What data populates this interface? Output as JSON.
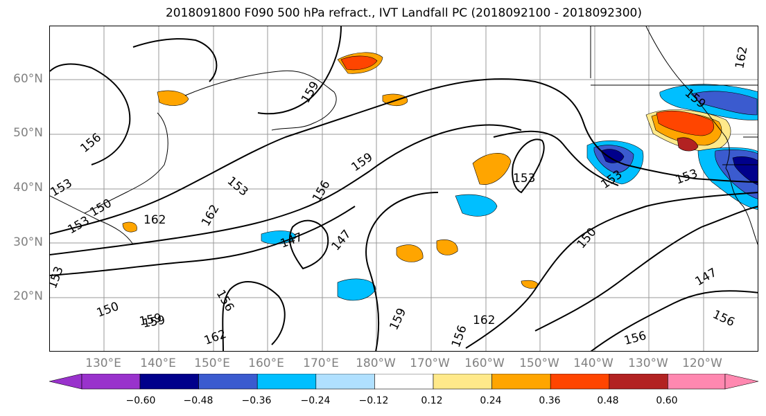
{
  "title": "2018091800 F090 500 hPa refract., IVT Landfall PC (2018092100 - 2018092300)",
  "lat_labels": [
    "60°N",
    "50°N",
    "40°N",
    "30°N",
    "20°N"
  ],
  "lon_labels": [
    "130°E",
    "140°E",
    "150°E",
    "160°E",
    "170°E",
    "180°W",
    "170°W",
    "160°W",
    "150°W",
    "140°W",
    "130°W",
    "120°W"
  ],
  "contour_labels": [
    "159",
    "156",
    "153",
    "150",
    "162",
    "153",
    "162",
    "159",
    "156",
    "147",
    "147",
    "153",
    "159",
    "153",
    "153",
    "150",
    "147",
    "156",
    "156",
    "159",
    "156",
    "162",
    "162",
    "159",
    "153",
    "162",
    "150",
    "159",
    "153",
    "156"
  ],
  "colorbar": {
    "colors": [
      "#9932cc",
      "#00008b",
      "#3b5bcf",
      "#00bfff",
      "#b0e0ff",
      "#ffffff",
      "#ffe98a",
      "#ffa500",
      "#ff4500",
      "#b22222",
      "#ff88b0"
    ],
    "tick_labels": [
      "−0.60",
      "−0.48",
      "−0.36",
      "−0.24",
      "−0.12",
      "0.12",
      "0.24",
      "0.36",
      "0.48",
      "0.60"
    ]
  }
}
